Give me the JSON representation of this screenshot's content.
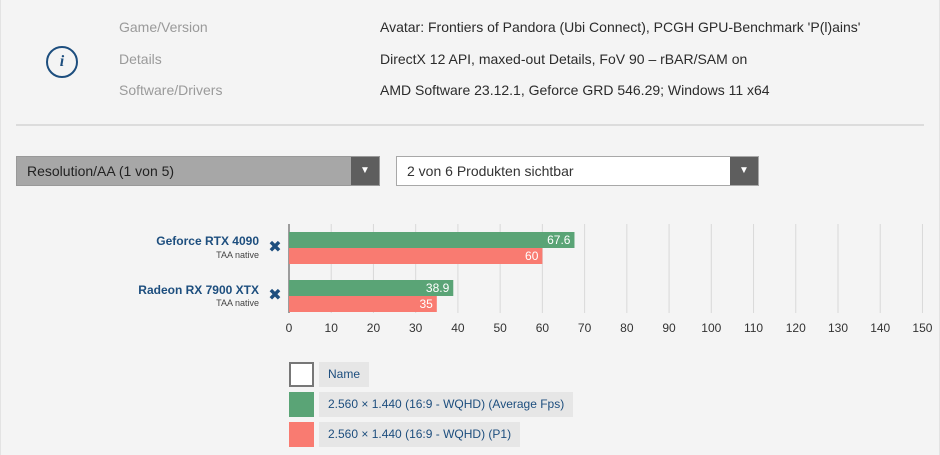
{
  "info": {
    "rows": [
      {
        "label": "Game/Version",
        "value": "Avatar: Frontiers of Pandora (Ubi Connect), PCGH GPU-Benchmark 'P(l)ains'"
      },
      {
        "label": "Details",
        "value": "DirectX 12 API, maxed-out Details, FoV 90 – rBAR/SAM on"
      },
      {
        "label": "Software/Drivers",
        "value": "AMD Software 23.12.1, Geforce GRD 546.29; Windows 11 x64"
      }
    ],
    "icon": "info-icon",
    "icon_glyph": "i"
  },
  "controls": {
    "resolution_select": "Resolution/AA (1 von 5)",
    "products_select": "2 von 6 Produkten sichtbar",
    "arrow_glyph": "▼",
    "remove_glyph": "✖"
  },
  "chart_data": {
    "type": "bar",
    "orientation": "horizontal",
    "categories": [
      {
        "name": "Geforce RTX 4090",
        "setting": "TAA native"
      },
      {
        "name": "Radeon RX 7900 XTX",
        "setting": "TAA native"
      }
    ],
    "series": [
      {
        "name": "2.560 × 1.440 (16:9 - WQHD) (Average Fps)",
        "color": "#5aa476",
        "values": [
          67.6,
          38.9
        ],
        "labels": [
          "67.6",
          "38.9"
        ]
      },
      {
        "name": "2.560 × 1.440 (16:9 - WQHD) (P1)",
        "color": "#f97b71",
        "values": [
          60,
          35
        ],
        "labels": [
          "60",
          "35"
        ]
      }
    ],
    "xlim": [
      0,
      150
    ],
    "xticks": [
      "0",
      "10",
      "20",
      "30",
      "40",
      "50",
      "60",
      "70",
      "80",
      "90",
      "100",
      "110",
      "120",
      "130",
      "140",
      "150"
    ],
    "grid": true
  },
  "legend": {
    "header": "Name",
    "items": [
      {
        "label": "2.560 × 1.440 (16:9 - WQHD) (Average Fps)",
        "color": "#5aa476"
      },
      {
        "label": "2.560 × 1.440 (16:9 - WQHD) (P1)",
        "color": "#f97b71"
      }
    ]
  }
}
